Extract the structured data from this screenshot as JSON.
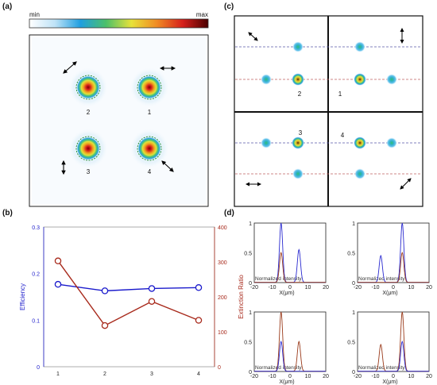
{
  "panel_labels": {
    "a": "(a)",
    "b": "(b)",
    "c": "(c)",
    "d": "(d)"
  },
  "colorbar": {
    "min_label": "min",
    "max_label": "max",
    "stops": [
      "#ffffff",
      "#bfe3f7",
      "#1f9fe0",
      "#4cc06a",
      "#e8e23a",
      "#f08a23",
      "#d6201c",
      "#4a0000"
    ]
  },
  "panel_a": {
    "spot_labels": [
      "2",
      "1",
      "3",
      "4"
    ]
  },
  "panel_c": {
    "spot_labels": [
      "2",
      "1",
      "3",
      "4"
    ]
  },
  "chart_data": [
    {
      "type": "line",
      "panel": "(b)",
      "categories": [
        "1",
        "2",
        "3",
        "4"
      ],
      "ylabel": "Efficiency",
      "y2label": "Extinction Ratio",
      "ylim": [
        0,
        0.3
      ],
      "y2lim": [
        0,
        400
      ],
      "yticks": [
        "0",
        "0.1",
        "0.2",
        "0.3"
      ],
      "y2ticks": [
        "0",
        "100",
        "200",
        "300",
        "400"
      ],
      "grid": false,
      "series": [
        {
          "axis": "left",
          "color": "#1a1acc",
          "values": [
            0.177,
            0.163,
            0.168,
            0.17
          ]
        },
        {
          "axis": "right",
          "color": "#a82a1c",
          "values": [
            303,
            118,
            187,
            133
          ]
        }
      ]
    },
    {
      "type": "line",
      "panel": "(d)",
      "xlabel": "X(μm)",
      "ylabel": "Normalized intensity",
      "xlim": [
        -20,
        20
      ],
      "ylim": [
        0,
        1
      ],
      "xticks": [
        "-20",
        "-10",
        "0",
        "10",
        "20"
      ],
      "yticks": [
        "0",
        "0.5",
        "1"
      ],
      "subplots": [
        {
          "series": [
            {
              "color": "#2a2ad0",
              "peaks": [
                [
                  -5,
                  1.0
                ],
                [
                  5,
                  0.55
                ]
              ]
            },
            {
              "color": "#9a3a1a",
              "peaks": [
                [
                  -5,
                  0.5
                ]
              ]
            }
          ]
        },
        {
          "series": [
            {
              "color": "#2a2ad0",
              "peaks": [
                [
                  -7,
                  0.45
                ],
                [
                  5,
                  1.0
                ]
              ]
            },
            {
              "color": "#9a3a1a",
              "peaks": [
                [
                  5,
                  0.5
                ]
              ]
            }
          ]
        },
        {
          "series": [
            {
              "color": "#9a3a1a",
              "peaks": [
                [
                  -5,
                  1.0
                ],
                [
                  5,
                  0.5
                ]
              ]
            },
            {
              "color": "#2a2ad0",
              "peaks": [
                [
                  -5,
                  0.5
                ]
              ]
            }
          ]
        },
        {
          "series": [
            {
              "color": "#9a3a1a",
              "peaks": [
                [
                  -7,
                  0.45
                ],
                [
                  5,
                  1.0
                ]
              ]
            },
            {
              "color": "#2a2ad0",
              "peaks": [
                [
                  5,
                  0.5
                ]
              ]
            }
          ]
        }
      ]
    }
  ]
}
